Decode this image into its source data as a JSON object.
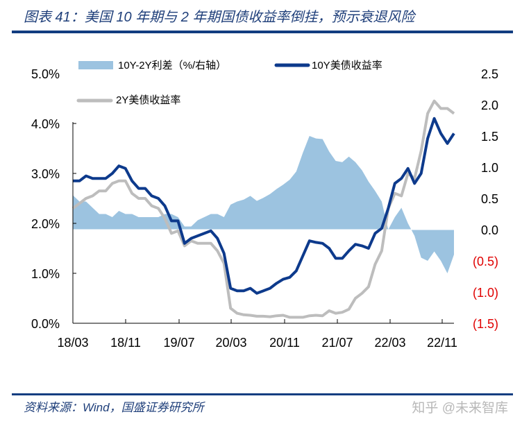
{
  "title": "图表 41：美国 10 年期与 2 年期国债收益率倒挂，预示衰退风险",
  "source": "资料来源：Wind，国盛证券研究所",
  "watermark": "知乎 @未来智库",
  "colors": {
    "spread": "#9cc3e0",
    "y10": "#0d3a8c",
    "y2": "#bdbdbd",
    "negative": "#e00000",
    "rule": "#123d80"
  },
  "chart_data": {
    "type": "line",
    "x_start": "2018-03",
    "x_end": "2023-01",
    "frequency": "monthly",
    "x_tick_labels": [
      "18/03",
      "18/11",
      "19/07",
      "20/03",
      "20/11",
      "21/07",
      "22/03",
      "22/11"
    ],
    "left_axis": {
      "ylim": [
        0,
        5
      ],
      "tick_labels": [
        "0.0%",
        "1.0%",
        "2.0%",
        "3.0%",
        "4.0%",
        "5.0%"
      ]
    },
    "right_axis": {
      "ylim": [
        -1.5,
        2.5
      ],
      "tick_labels": [
        "(1.5)",
        "(1.0)",
        "(0.5)",
        "0.0",
        "0.5",
        "1.0",
        "1.5",
        "2.0",
        "2.5"
      ]
    },
    "legend": [
      "10Y-2Y利差（%/右轴）",
      "10Y美债收益率",
      "2Y美债收益率"
    ],
    "series": [
      {
        "name": "10Y美债收益率",
        "axis": "left",
        "type": "line",
        "values": [
          2.85,
          2.85,
          2.95,
          2.9,
          2.9,
          2.9,
          3.0,
          3.15,
          3.1,
          2.85,
          2.7,
          2.7,
          2.55,
          2.5,
          2.35,
          2.05,
          2.05,
          1.6,
          1.7,
          1.75,
          1.8,
          1.85,
          1.7,
          1.4,
          0.7,
          0.65,
          0.65,
          0.7,
          0.6,
          0.65,
          0.7,
          0.8,
          0.88,
          0.92,
          1.05,
          1.35,
          1.65,
          1.62,
          1.6,
          1.5,
          1.3,
          1.3,
          1.45,
          1.58,
          1.55,
          1.5,
          1.8,
          1.9,
          2.3,
          2.8,
          2.9,
          3.1,
          2.8,
          3.0,
          3.7,
          4.1,
          3.8,
          3.6,
          3.8
        ]
      },
      {
        "name": "2Y美债收益率",
        "axis": "left",
        "type": "line",
        "values": [
          2.3,
          2.4,
          2.5,
          2.55,
          2.65,
          2.65,
          2.8,
          2.85,
          2.85,
          2.6,
          2.5,
          2.5,
          2.35,
          2.3,
          2.1,
          1.8,
          1.85,
          1.55,
          1.65,
          1.6,
          1.6,
          1.6,
          1.45,
          1.2,
          0.3,
          0.2,
          0.17,
          0.16,
          0.14,
          0.14,
          0.13,
          0.15,
          0.16,
          0.12,
          0.12,
          0.12,
          0.15,
          0.16,
          0.15,
          0.25,
          0.2,
          0.22,
          0.28,
          0.5,
          0.6,
          0.73,
          1.18,
          1.45,
          2.3,
          2.6,
          2.55,
          3.0,
          2.9,
          3.45,
          4.2,
          4.45,
          4.3,
          4.3,
          4.2
        ]
      },
      {
        "name": "10Y-2Y利差（%/右轴）",
        "axis": "right",
        "type": "area",
        "values": [
          0.55,
          0.45,
          0.45,
          0.35,
          0.25,
          0.25,
          0.2,
          0.3,
          0.25,
          0.25,
          0.2,
          0.2,
          0.2,
          0.2,
          0.25,
          0.25,
          0.2,
          0.05,
          0.05,
          0.15,
          0.2,
          0.25,
          0.25,
          0.2,
          0.4,
          0.45,
          0.48,
          0.54,
          0.46,
          0.51,
          0.57,
          0.65,
          0.72,
          0.8,
          0.93,
          1.23,
          1.5,
          1.46,
          1.45,
          1.25,
          1.1,
          1.08,
          1.17,
          1.08,
          0.95,
          0.77,
          0.62,
          0.45,
          0.0,
          0.2,
          0.35,
          0.1,
          -0.1,
          -0.45,
          -0.5,
          -0.35,
          -0.5,
          -0.7,
          -0.4
        ]
      }
    ]
  }
}
